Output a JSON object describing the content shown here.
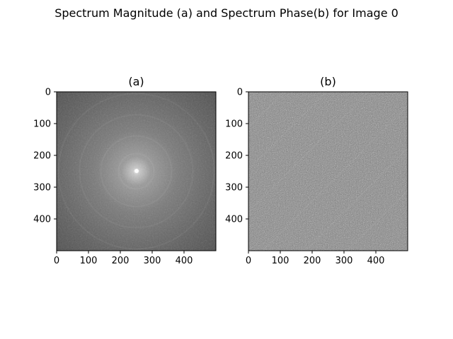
{
  "figure": {
    "suptitle": "Spectrum Magnitude (a) and Spectrum Phase(b) for Image 0"
  },
  "chart_data": [
    {
      "type": "heatmap",
      "title": "(a)",
      "xlabel": "",
      "ylabel": "",
      "colormap": "gray",
      "image_size": [
        500,
        500
      ],
      "xlim": [
        0,
        500
      ],
      "ylim": [
        500,
        0
      ],
      "y_axis_inverted": true,
      "xticks": [
        0,
        100,
        200,
        300,
        400
      ],
      "yticks": [
        0,
        100,
        200,
        300,
        400
      ],
      "content": "log-magnitude spectrum, bright peak at center (~250, 250), dark gray background with faint radial rings",
      "center_peak": [
        250,
        250
      ]
    },
    {
      "type": "heatmap",
      "title": "(b)",
      "xlabel": "",
      "ylabel": "",
      "colormap": "gray",
      "image_size": [
        500,
        500
      ],
      "xlim": [
        0,
        500
      ],
      "ylim": [
        500,
        0
      ],
      "y_axis_inverted": true,
      "xticks": [
        0,
        100,
        200,
        300,
        400
      ],
      "yticks": [
        0,
        100,
        200,
        300,
        400
      ],
      "content": "phase spectrum, mid-gray random noise texture with faint diagonal structure"
    }
  ]
}
